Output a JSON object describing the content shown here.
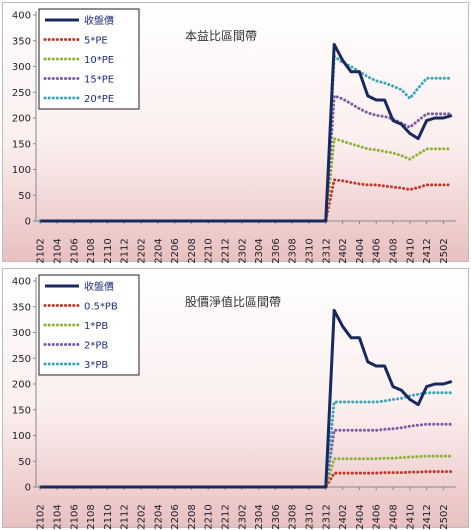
{
  "chart_data": [
    {
      "type": "line",
      "title": "本益比區間帶",
      "categories": [
        "2102",
        "2103",
        "2104",
        "2105",
        "2106",
        "2107",
        "2108",
        "2109",
        "2110",
        "2111",
        "2112",
        "2201",
        "2202",
        "2203",
        "2204",
        "2205",
        "2206",
        "2207",
        "2208",
        "2209",
        "2210",
        "2211",
        "2212",
        "2301",
        "2302",
        "2303",
        "2304",
        "2305",
        "2306",
        "2307",
        "2308",
        "2309",
        "2310",
        "2311",
        "2312",
        "2401",
        "2402",
        "2403",
        "2404",
        "2405",
        "2406",
        "2407",
        "2408",
        "2409",
        "2410",
        "2411",
        "2412",
        "2501",
        "2502",
        "2503"
      ],
      "xticks": [
        "2102",
        "2104",
        "2106",
        "2108",
        "2110",
        "2112",
        "2202",
        "2204",
        "2206",
        "2208",
        "2210",
        "2212",
        "2302",
        "2304",
        "2306",
        "2308",
        "2310",
        "2312",
        "2402",
        "2404",
        "2406",
        "2408",
        "2410",
        "2412",
        "2502"
      ],
      "ylim": [
        0,
        400
      ],
      "yticks": [
        0,
        50,
        100,
        150,
        200,
        250,
        300,
        350,
        400
      ],
      "legend_position": "top-left",
      "series": [
        {
          "name": "收盤價",
          "color": "#17295e",
          "style": "solid",
          "values": [
            0,
            0,
            0,
            0,
            0,
            0,
            0,
            0,
            0,
            0,
            0,
            0,
            0,
            0,
            0,
            0,
            0,
            0,
            0,
            0,
            0,
            0,
            0,
            0,
            0,
            0,
            0,
            0,
            0,
            0,
            0,
            0,
            0,
            0,
            0,
            343,
            312,
            290,
            290,
            243,
            235,
            235,
            195,
            188,
            170,
            160,
            195,
            200,
            200,
            205
          ]
        },
        {
          "name": "5*PE",
          "color": "#c0392b",
          "style": "dotted",
          "values": [
            0,
            0,
            0,
            0,
            0,
            0,
            0,
            0,
            0,
            0,
            0,
            0,
            0,
            0,
            0,
            0,
            0,
            0,
            0,
            0,
            0,
            0,
            0,
            0,
            0,
            0,
            0,
            0,
            0,
            0,
            0,
            0,
            0,
            0,
            0,
            80,
            78,
            75,
            72,
            70,
            70,
            68,
            66,
            64,
            61,
            65,
            70,
            70,
            70,
            70
          ]
        },
        {
          "name": "10*PE",
          "color": "#8db33a",
          "style": "dotted",
          "values": [
            0,
            0,
            0,
            0,
            0,
            0,
            0,
            0,
            0,
            0,
            0,
            0,
            0,
            0,
            0,
            0,
            0,
            0,
            0,
            0,
            0,
            0,
            0,
            0,
            0,
            0,
            0,
            0,
            0,
            0,
            0,
            0,
            0,
            0,
            0,
            160,
            155,
            150,
            145,
            140,
            138,
            135,
            132,
            127,
            120,
            130,
            140,
            140,
            140,
            140
          ]
        },
        {
          "name": "15*PE",
          "color": "#7b5aa6",
          "style": "dotted",
          "values": [
            0,
            0,
            0,
            0,
            0,
            0,
            0,
            0,
            0,
            0,
            0,
            0,
            0,
            0,
            0,
            0,
            0,
            0,
            0,
            0,
            0,
            0,
            0,
            0,
            0,
            0,
            0,
            0,
            0,
            0,
            0,
            0,
            0,
            0,
            0,
            243,
            237,
            228,
            218,
            210,
            205,
            203,
            198,
            190,
            182,
            195,
            208,
            208,
            208,
            208
          ]
        },
        {
          "name": "20*PE",
          "color": "#3aa6b9",
          "style": "dotted",
          "values": [
            0,
            0,
            0,
            0,
            0,
            0,
            0,
            0,
            0,
            0,
            0,
            0,
            0,
            0,
            0,
            0,
            0,
            0,
            0,
            0,
            0,
            0,
            0,
            0,
            0,
            0,
            0,
            0,
            0,
            0,
            0,
            0,
            0,
            0,
            0,
            320,
            308,
            300,
            290,
            280,
            272,
            268,
            262,
            255,
            238,
            258,
            277,
            277,
            277,
            277
          ]
        }
      ]
    },
    {
      "type": "line",
      "title": "股價淨值比區間帶",
      "categories": [
        "2102",
        "2103",
        "2104",
        "2105",
        "2106",
        "2107",
        "2108",
        "2109",
        "2110",
        "2111",
        "2112",
        "2201",
        "2202",
        "2203",
        "2204",
        "2205",
        "2206",
        "2207",
        "2208",
        "2209",
        "2210",
        "2211",
        "2212",
        "2301",
        "2302",
        "2303",
        "2304",
        "2305",
        "2306",
        "2307",
        "2308",
        "2309",
        "2310",
        "2311",
        "2312",
        "2401",
        "2402",
        "2403",
        "2404",
        "2405",
        "2406",
        "2407",
        "2408",
        "2409",
        "2410",
        "2411",
        "2412",
        "2501",
        "2502",
        "2503"
      ],
      "xticks": [
        "2102",
        "2104",
        "2106",
        "2108",
        "2110",
        "2112",
        "2202",
        "2204",
        "2206",
        "2208",
        "2210",
        "2212",
        "2302",
        "2304",
        "2306",
        "2308",
        "2310",
        "2312",
        "2402",
        "2404",
        "2406",
        "2408",
        "2410",
        "2412",
        "2502"
      ],
      "ylim": [
        0,
        400
      ],
      "yticks": [
        0,
        50,
        100,
        150,
        200,
        250,
        300,
        350,
        400
      ],
      "legend_position": "top-left",
      "series": [
        {
          "name": "收盤價",
          "color": "#17295e",
          "style": "solid",
          "values": [
            0,
            0,
            0,
            0,
            0,
            0,
            0,
            0,
            0,
            0,
            0,
            0,
            0,
            0,
            0,
            0,
            0,
            0,
            0,
            0,
            0,
            0,
            0,
            0,
            0,
            0,
            0,
            0,
            0,
            0,
            0,
            0,
            0,
            0,
            0,
            343,
            312,
            290,
            290,
            243,
            235,
            235,
            195,
            188,
            170,
            160,
            195,
            200,
            200,
            205
          ]
        },
        {
          "name": "0.5*PB",
          "color": "#c0392b",
          "style": "dotted",
          "values": [
            0,
            0,
            0,
            0,
            0,
            0,
            0,
            0,
            0,
            0,
            0,
            0,
            0,
            0,
            0,
            0,
            0,
            0,
            0,
            0,
            0,
            0,
            0,
            0,
            0,
            0,
            0,
            0,
            0,
            0,
            0,
            0,
            0,
            0,
            0,
            27,
            27,
            27,
            27,
            27,
            27,
            28,
            28,
            28,
            29,
            29,
            30,
            30,
            30,
            30
          ]
        },
        {
          "name": "1*PB",
          "color": "#8db33a",
          "style": "dotted",
          "values": [
            0,
            0,
            0,
            0,
            0,
            0,
            0,
            0,
            0,
            0,
            0,
            0,
            0,
            0,
            0,
            0,
            0,
            0,
            0,
            0,
            0,
            0,
            0,
            0,
            0,
            0,
            0,
            0,
            0,
            0,
            0,
            0,
            0,
            0,
            0,
            55,
            55,
            55,
            55,
            55,
            55,
            56,
            56,
            57,
            58,
            59,
            60,
            60,
            60,
            60
          ]
        },
        {
          "name": "2*PB",
          "color": "#7b5aa6",
          "style": "dotted",
          "values": [
            0,
            0,
            0,
            0,
            0,
            0,
            0,
            0,
            0,
            0,
            0,
            0,
            0,
            0,
            0,
            0,
            0,
            0,
            0,
            0,
            0,
            0,
            0,
            0,
            0,
            0,
            0,
            0,
            0,
            0,
            0,
            0,
            0,
            0,
            0,
            110,
            110,
            110,
            110,
            110,
            110,
            112,
            113,
            115,
            118,
            120,
            122,
            122,
            122,
            122
          ]
        },
        {
          "name": "3*PB",
          "color": "#3aa6b9",
          "style": "dotted",
          "values": [
            0,
            0,
            0,
            0,
            0,
            0,
            0,
            0,
            0,
            0,
            0,
            0,
            0,
            0,
            0,
            0,
            0,
            0,
            0,
            0,
            0,
            0,
            0,
            0,
            0,
            0,
            0,
            0,
            0,
            0,
            0,
            0,
            0,
            0,
            0,
            165,
            165,
            165,
            165,
            165,
            165,
            167,
            170,
            172,
            177,
            180,
            183,
            183,
            183,
            183
          ]
        }
      ]
    }
  ]
}
